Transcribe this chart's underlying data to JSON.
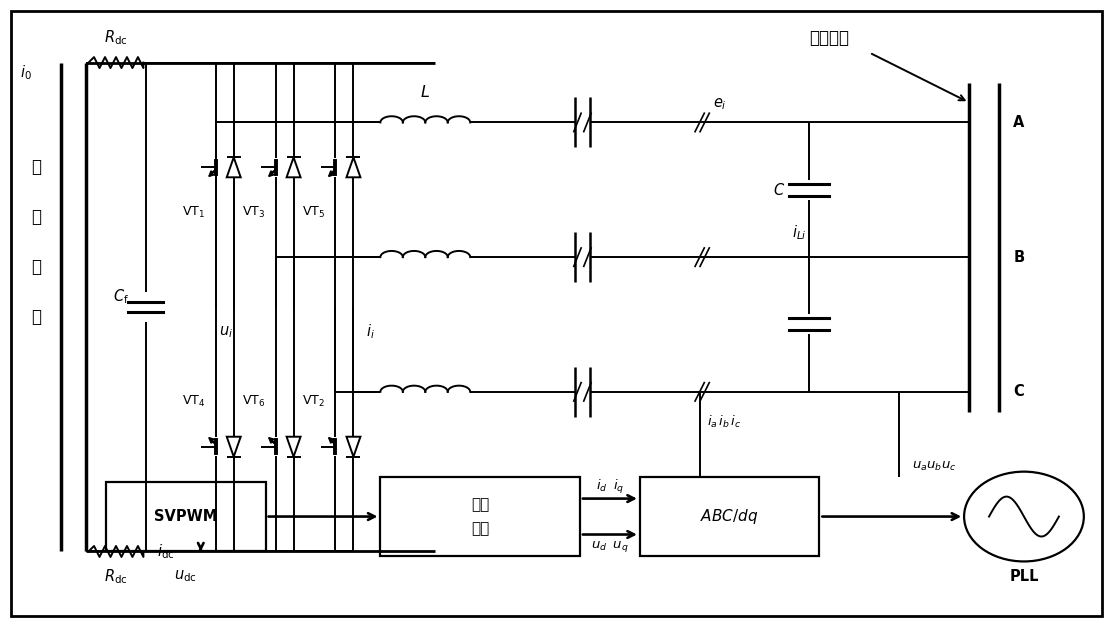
{
  "bg_color": "#ffffff",
  "line_color": "#000000",
  "fig_width": 11.13,
  "fig_height": 6.27,
  "dpi": 100,
  "xlim": [
    0,
    111.3
  ],
  "ylim": [
    0,
    62.7
  ]
}
